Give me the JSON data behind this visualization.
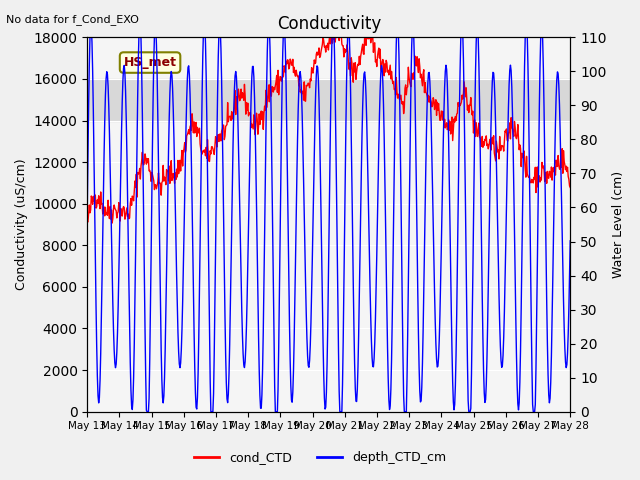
{
  "title": "Conductivity",
  "top_left_text": "No data for f_Cond_EXO",
  "ylabel_left": "Conductivity (uS/cm)",
  "ylabel_right": "Water Level (cm)",
  "legend_labels": [
    "cond_CTD",
    "depth_CTD_cm"
  ],
  "legend_colors": [
    "red",
    "blue"
  ],
  "box_label": "HS_met",
  "ylim_left": [
    0,
    18000
  ],
  "ylim_right": [
    0,
    110
  ],
  "yticks_left": [
    0,
    2000,
    4000,
    6000,
    8000,
    10000,
    12000,
    14000,
    16000,
    18000
  ],
  "yticks_right": [
    0,
    10,
    20,
    30,
    40,
    50,
    60,
    70,
    80,
    90,
    100,
    110
  ],
  "background_color": "#f0f0f0",
  "plot_bg_color": "#f5f5f5",
  "shade_ymin": 14000,
  "shade_ymax": 16000,
  "shade_color": "#d8d8d8",
  "xtick_positions": [
    0,
    1,
    2,
    3,
    4,
    5,
    6,
    7,
    8,
    9,
    10,
    11,
    12,
    13,
    14,
    15
  ],
  "xtick_labels": [
    "May 13",
    "May 14",
    "May 15",
    "May 16",
    "May 17",
    "May 18",
    "May 19",
    "May 20",
    "May 21",
    "May 22",
    "May 23",
    "May 24",
    "May 25",
    "May 26",
    "May 27",
    "May 28"
  ]
}
